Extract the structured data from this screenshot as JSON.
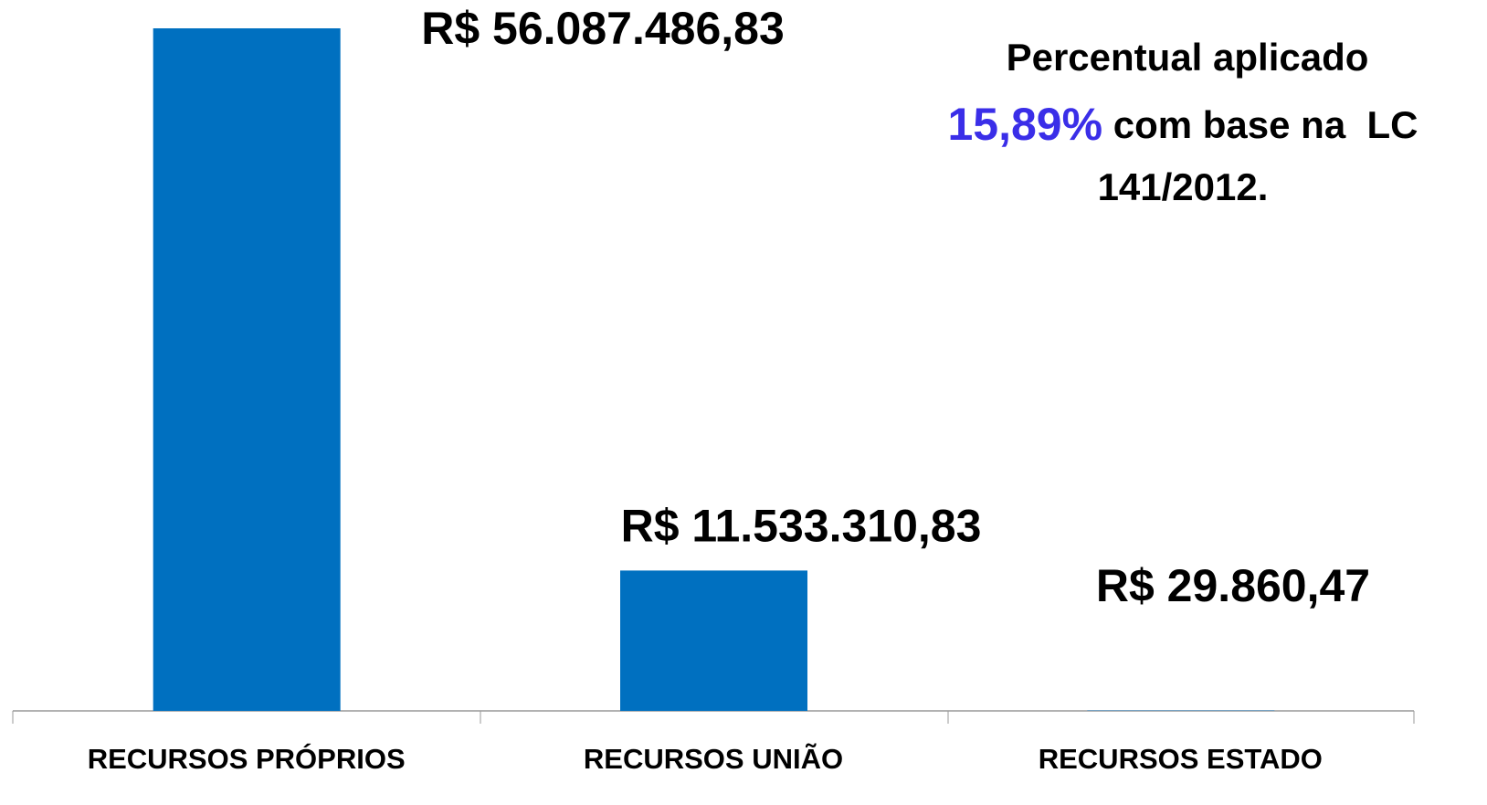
{
  "chart_data": {
    "type": "bar",
    "categories": [
      "RECURSOS PRÓPRIOS",
      "RECURSOS UNIÃO",
      "RECURSOS ESTADO"
    ],
    "values": [
      56087486.83,
      11533310.83,
      29860.47
    ],
    "value_labels": [
      "R$ 56.087.486,83",
      "R$ 11.533.310,83",
      "R$ 29.860,47"
    ],
    "color": "#0070c0",
    "annotation": {
      "line1": "Percentual aplicado",
      "highlight": "15,89%",
      "highlight_color": "#3a2ee8",
      "line2_rest": "com base na  LC",
      "line3": "141/2012."
    }
  }
}
